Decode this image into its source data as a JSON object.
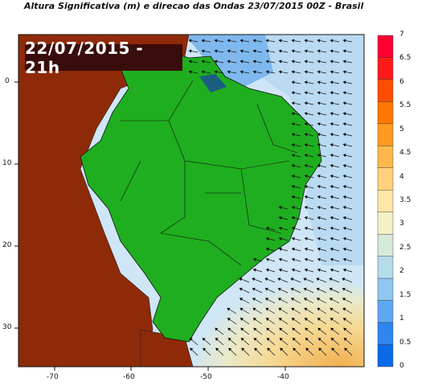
{
  "title": "Altura Significativa (m) e direcao das Ondas 23/07/2015 00Z - Brasil",
  "date_badge": "22/07/2015 - 21h",
  "colors": {
    "ocean_low": "#cfe6f6",
    "ocean_mid": "#9dcdf0",
    "ocean_high": "#3b8fe0",
    "land_brazil": "#1fae1f",
    "land_other": "#8f2a08",
    "swell_yellow": "#f7e3a0",
    "swell_orange": "#f0b050"
  },
  "x_axis": {
    "ticks": [
      "-70",
      "-60",
      "-50",
      "-40"
    ]
  },
  "y_axis": {
    "ticks": [
      "0",
      "10",
      "20",
      "30"
    ]
  },
  "colorbar": {
    "labels": [
      "7",
      "6.5",
      "6",
      "5.5",
      "5",
      "4.5",
      "4",
      "3.5",
      "3",
      "2.5",
      "2",
      "1.5",
      "1",
      "0.5",
      "0"
    ],
    "colors": [
      "#ff0033",
      "#ff1a1a",
      "#ff4d00",
      "#ff7700",
      "#ff9a1f",
      "#ffb84d",
      "#ffd17a",
      "#ffe7a8",
      "#f3f0c8",
      "#d7ead7",
      "#b5dcea",
      "#8fc7f0",
      "#5fa8f2",
      "#2f86ef",
      "#0a6ae8"
    ]
  }
}
